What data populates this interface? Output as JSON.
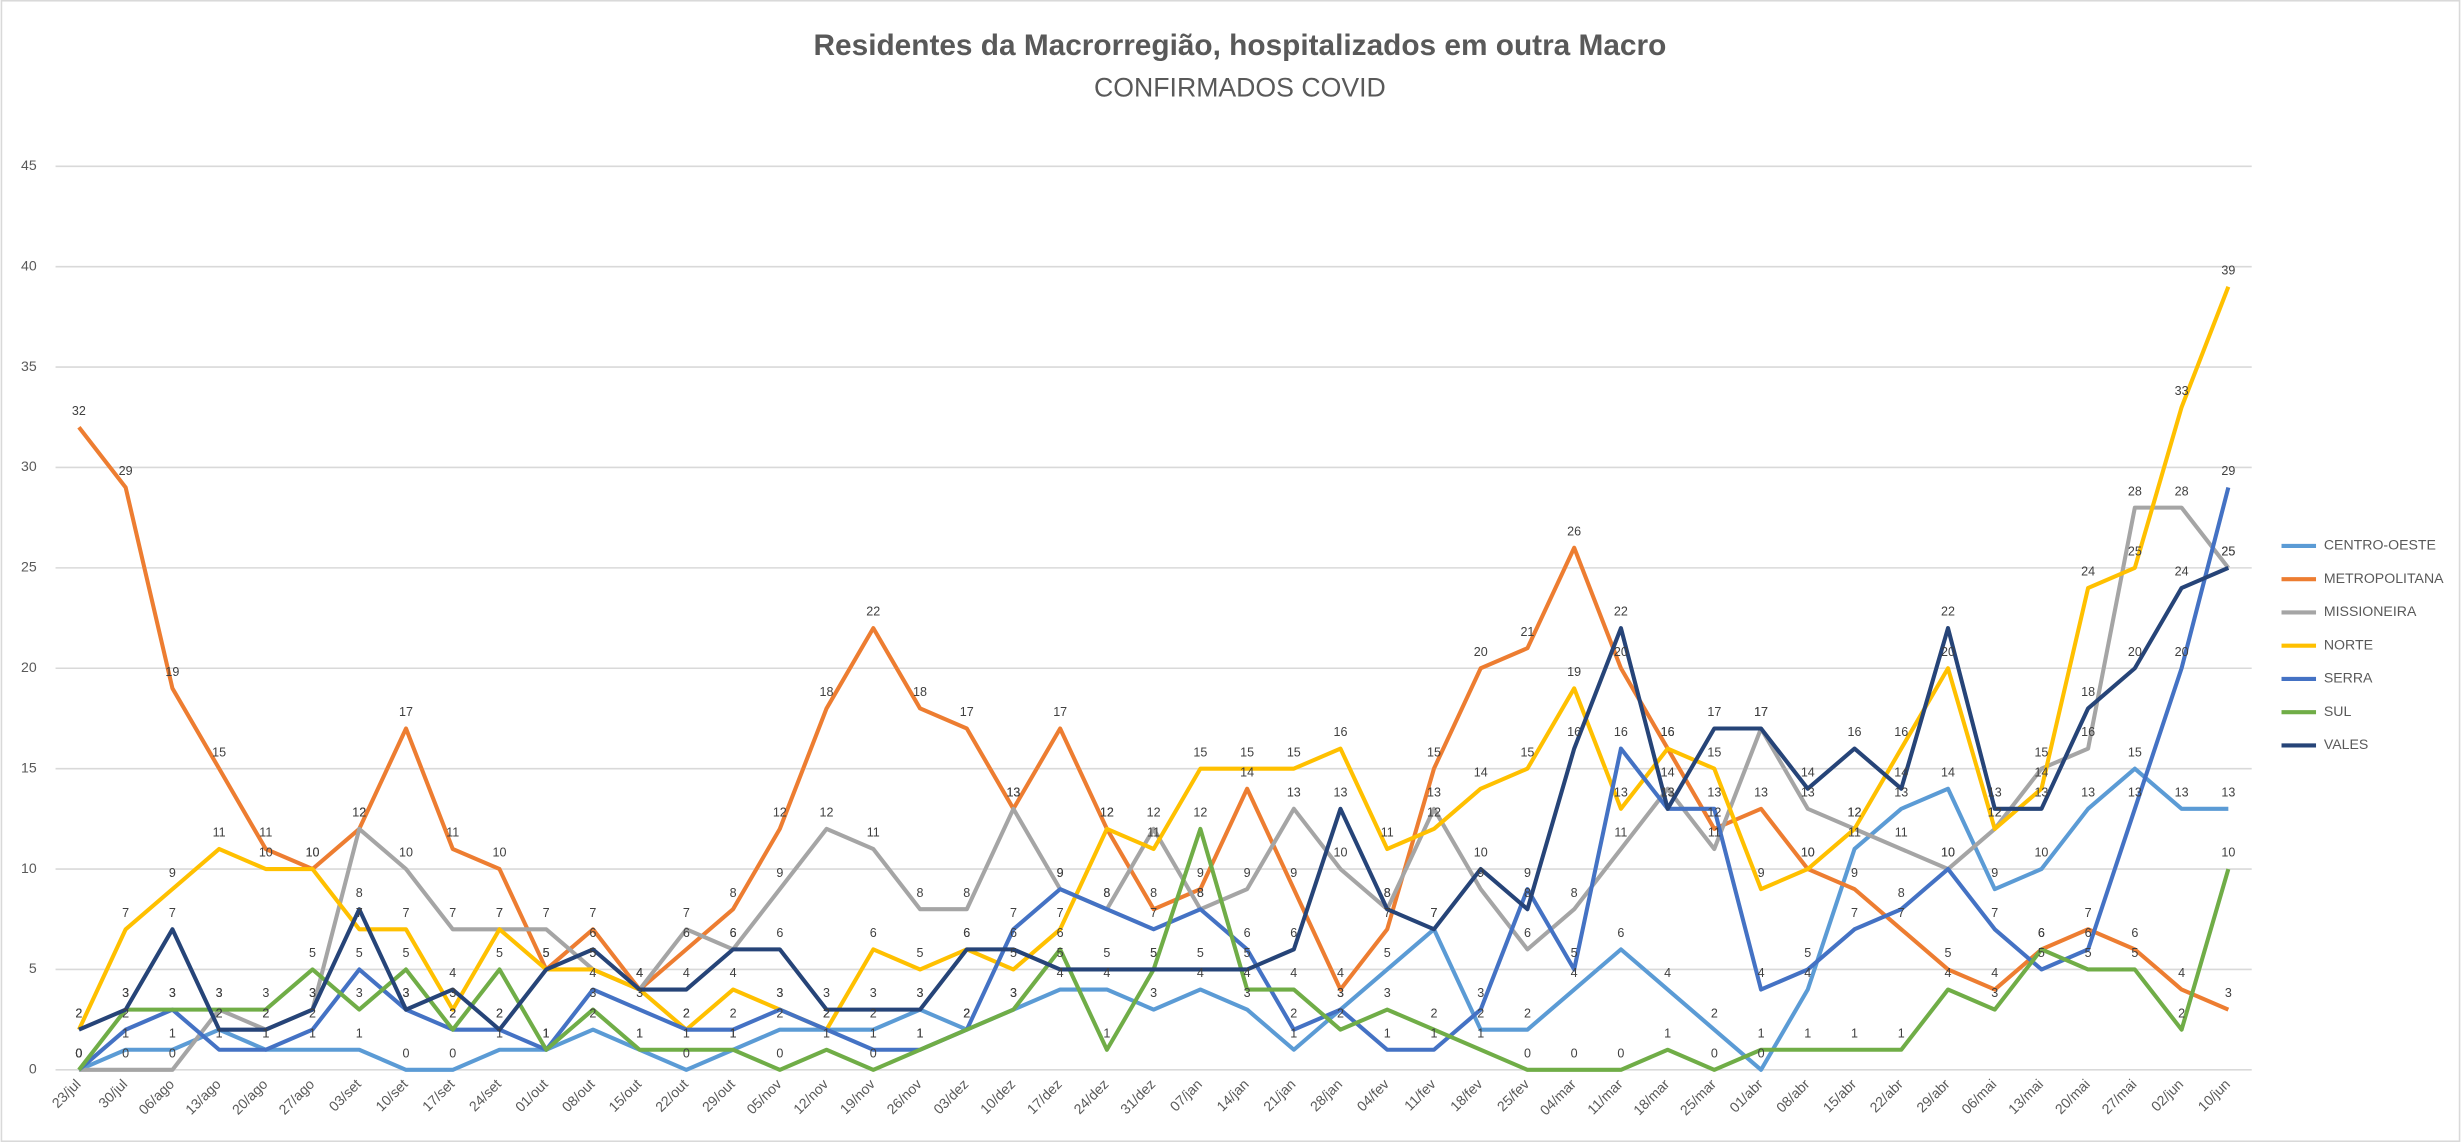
{
  "chart_data": {
    "type": "line",
    "title": "Residentes da Macrorregião, hospitalizados em outra Macro",
    "subtitle": "CONFIRMADOS COVID",
    "categories": [
      "23/jul",
      "30/jul",
      "06/ago",
      "13/ago",
      "20/ago",
      "27/ago",
      "03/set",
      "10/set",
      "17/set",
      "24/set",
      "01/out",
      "08/out",
      "15/out",
      "22/out",
      "29/out",
      "05/nov",
      "12/nov",
      "19/nov",
      "26/nov",
      "03/dez",
      "10/dez",
      "17/dez",
      "24/dez",
      "31/dez",
      "07/jan",
      "14/jan",
      "21/jan",
      "28/jan",
      "04/fev",
      "11/fev",
      "18/fev",
      "25/fev",
      "04/mar",
      "11/mar",
      "18/mar",
      "25/mar",
      "01/abr",
      "08/abr",
      "15/abr",
      "22/abr",
      "29/abr",
      "06/mai",
      "13/mai",
      "20/mai",
      "27/mai",
      "02/jun",
      "10/jun"
    ],
    "series": [
      {
        "name": "CENTRO-OESTE",
        "color": "#5b9bd5",
        "values": [
          0,
          1,
          1,
          2,
          1,
          1,
          1,
          0,
          0,
          1,
          1,
          2,
          1,
          0,
          1,
          2,
          2,
          2,
          3,
          2,
          3,
          4,
          4,
          3,
          4,
          3,
          1,
          3,
          5,
          7,
          2,
          2,
          4,
          6,
          4,
          2,
          0,
          4,
          11,
          13,
          14,
          9,
          10,
          13,
          15,
          13,
          13
        ]
      },
      {
        "name": "METROPOLITANA",
        "color": "#ed7d31",
        "values": [
          32,
          29,
          19,
          15,
          11,
          10,
          12,
          17,
          11,
          10,
          5,
          7,
          4,
          6,
          8,
          12,
          18,
          22,
          18,
          17,
          13,
          17,
          12,
          8,
          9,
          14,
          9,
          4,
          7,
          15,
          20,
          21,
          26,
          20,
          16,
          12,
          13,
          10,
          9,
          7,
          5,
          4,
          6,
          7,
          6,
          4,
          3
        ]
      },
      {
        "name": "MISSIONEIRA",
        "color": "#a5a5a5",
        "values": [
          0,
          0,
          0,
          3,
          2,
          3,
          12,
          10,
          7,
          7,
          7,
          5,
          4,
          7,
          6,
          9,
          12,
          11,
          8,
          8,
          13,
          9,
          8,
          12,
          8,
          9,
          13,
          10,
          8,
          13,
          9,
          6,
          8,
          11,
          14,
          11,
          17,
          13,
          12,
          11,
          10,
          12,
          15,
          16,
          28,
          28,
          25
        ]
      },
      {
        "name": "NORTE",
        "color": "#ffc000",
        "values": [
          2,
          7,
          9,
          11,
          10,
          10,
          7,
          7,
          3,
          7,
          5,
          5,
          4,
          2,
          4,
          3,
          2,
          6,
          5,
          6,
          5,
          7,
          12,
          11,
          15,
          15,
          15,
          16,
          11,
          12,
          14,
          15,
          19,
          13,
          16,
          15,
          9,
          10,
          12,
          16,
          20,
          12,
          14,
          24,
          25,
          33,
          39
        ]
      },
      {
        "name": "SERRA",
        "color": "#4472c4",
        "values": [
          0,
          2,
          3,
          1,
          1,
          2,
          5,
          3,
          2,
          2,
          1,
          4,
          3,
          2,
          2,
          3,
          2,
          1,
          1,
          2,
          7,
          9,
          8,
          7,
          8,
          6,
          2,
          3,
          1,
          1,
          3,
          9,
          5,
          16,
          13,
          13,
          4,
          5,
          7,
          8,
          10,
          7,
          5,
          6,
          13,
          20,
          29
        ]
      },
      {
        "name": "SUL",
        "color": "#70ad47",
        "values": [
          0,
          3,
          3,
          3,
          3,
          5,
          3,
          5,
          2,
          5,
          1,
          3,
          1,
          1,
          1,
          0,
          1,
          0,
          1,
          2,
          3,
          6,
          1,
          5,
          12,
          4,
          4,
          2,
          3,
          2,
          1,
          0,
          0,
          0,
          1,
          0,
          1,
          1,
          1,
          1,
          4,
          3,
          6,
          5,
          5,
          2,
          10
        ]
      },
      {
        "name": "VALES",
        "color": "#264478",
        "values": [
          2,
          3,
          7,
          2,
          2,
          3,
          8,
          3,
          4,
          2,
          5,
          6,
          4,
          4,
          6,
          6,
          3,
          3,
          3,
          6,
          6,
          5,
          5,
          5,
          5,
          5,
          6,
          13,
          8,
          7,
          10,
          8,
          16,
          22,
          13,
          17,
          17,
          14,
          16,
          14,
          22,
          13,
          13,
          18,
          20,
          24,
          25
        ]
      }
    ],
    "ylim": [
      0,
      45
    ],
    "yticks": [
      0,
      5,
      10,
      15,
      20,
      25,
      30,
      35,
      40,
      45
    ],
    "grid": true,
    "legend": "right"
  }
}
